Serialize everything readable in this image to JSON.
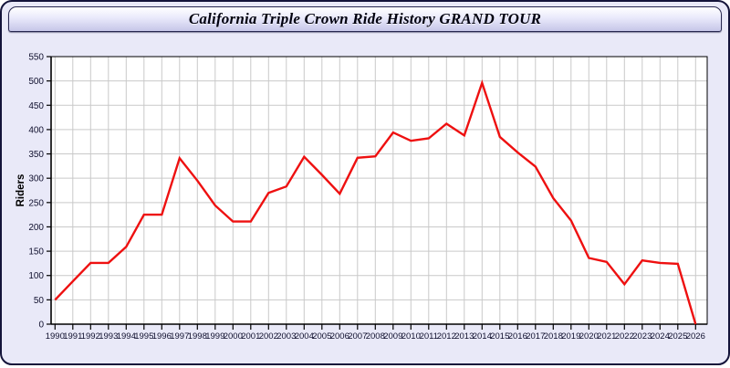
{
  "window": {
    "title": "California Triple Crown Ride History GRAND TOUR"
  },
  "chart_data": {
    "type": "line",
    "title": "California Triple Crown Ride History GRAND TOUR",
    "xlabel": "",
    "ylabel": "Riders",
    "x": [
      1990,
      1991,
      1992,
      1993,
      1994,
      1995,
      1996,
      1997,
      1998,
      1999,
      2000,
      2001,
      2002,
      2003,
      2004,
      2005,
      2006,
      2007,
      2008,
      2009,
      2010,
      2011,
      2012,
      2013,
      2014,
      2015,
      2016,
      2017,
      2018,
      2019,
      2020,
      2021,
      2022,
      2023,
      2024,
      2025,
      2026
    ],
    "series": [
      {
        "name": "Riders",
        "color": "#ee1010",
        "values": [
          50,
          88,
          126,
          126,
          159,
          225,
          225,
          341,
          295,
          244,
          211,
          211,
          270,
          283,
          344,
          307,
          268,
          342,
          345,
          394,
          377,
          382,
          412,
          388,
          496,
          385,
          353,
          324,
          259,
          213,
          136,
          128,
          82,
          131,
          126,
          124,
          0
        ]
      }
    ],
    "ylim": [
      0,
      550
    ],
    "ytick_step": 50,
    "grid": true,
    "legend": "none",
    "plot_bg": "#ffffff",
    "grid_color": "#c9c9c9",
    "axis_color": "#000000",
    "tick_label_color": "#10102e"
  }
}
